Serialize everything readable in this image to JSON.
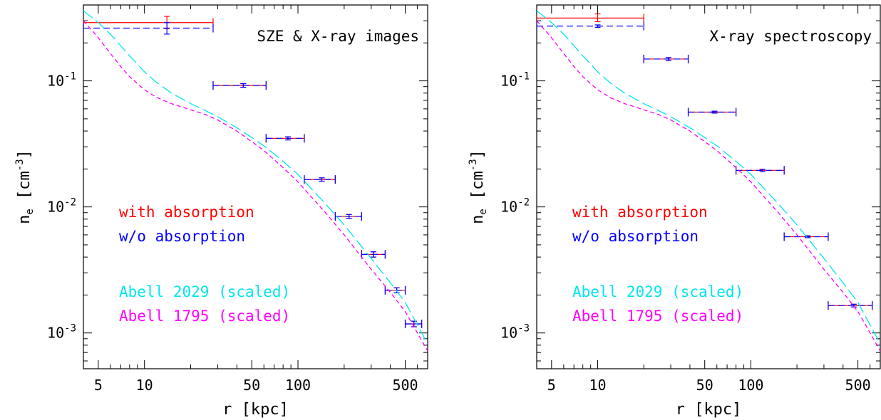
{
  "chart_data": [
    {
      "type": "scatter",
      "title": "SZE & X-ray images",
      "xlabel": "r [kpc]",
      "ylabel": "n_e [cm^-3]",
      "xscale": "log",
      "yscale": "log",
      "xlim": [
        4,
        700
      ],
      "ylim": [
        0.00052,
        0.4
      ],
      "x_ticks": [
        "5",
        "10",
        "50",
        "100",
        "500"
      ],
      "y_ticks": [
        "10^-1",
        "10^-2",
        "10^-3"
      ],
      "legend": [
        {
          "label": "with absorption",
          "color": "#ff0000"
        },
        {
          "label": "w/o absorption",
          "color": "#0000ff"
        },
        {
          "label": "Abell 2029 (scaled)",
          "color": "#00e5ee"
        },
        {
          "label": "Abell 1795 (scaled)",
          "color": "#ff00ff"
        }
      ],
      "series": [
        {
          "name": "with absorption",
          "color": "#ff0000",
          "style": "solid",
          "points": [
            {
              "x": 14,
              "xlo": 4,
              "xhi": 28,
              "y": 0.29,
              "ylo": 0.26,
              "yhi": 0.325
            },
            {
              "x": 44,
              "xlo": 28,
              "xhi": 62,
              "y": 0.092,
              "ylo": 0.089,
              "yhi": 0.095
            },
            {
              "x": 86,
              "xlo": 62,
              "xhi": 110,
              "y": 0.035,
              "ylo": 0.034,
              "yhi": 0.036
            },
            {
              "x": 143,
              "xlo": 110,
              "xhi": 175,
              "y": 0.0165,
              "ylo": 0.016,
              "yhi": 0.017
            },
            {
              "x": 215,
              "xlo": 175,
              "xhi": 260,
              "y": 0.0084,
              "ylo": 0.0081,
              "yhi": 0.0087
            },
            {
              "x": 310,
              "xlo": 260,
              "xhi": 370,
              "y": 0.0042,
              "ylo": 0.004,
              "yhi": 0.0044
            },
            {
              "x": 440,
              "xlo": 370,
              "xhi": 500,
              "y": 0.00218,
              "ylo": 0.00208,
              "yhi": 0.00228
            },
            {
              "x": 570,
              "xlo": 500,
              "xhi": 640,
              "y": 0.00118,
              "ylo": 0.00112,
              "yhi": 0.00124
            }
          ]
        },
        {
          "name": "w/o absorption",
          "color": "#0000ff",
          "style": "dashed",
          "points": [
            {
              "x": 14,
              "xlo": 4,
              "xhi": 28,
              "y": 0.262,
              "ylo": 0.235,
              "yhi": 0.29
            },
            {
              "x": 44,
              "xlo": 28,
              "xhi": 62,
              "y": 0.092,
              "ylo": 0.089,
              "yhi": 0.095
            },
            {
              "x": 86,
              "xlo": 62,
              "xhi": 110,
              "y": 0.035,
              "ylo": 0.034,
              "yhi": 0.036
            },
            {
              "x": 143,
              "xlo": 110,
              "xhi": 175,
              "y": 0.0165,
              "ylo": 0.016,
              "yhi": 0.017
            },
            {
              "x": 215,
              "xlo": 175,
              "xhi": 260,
              "y": 0.0084,
              "ylo": 0.0081,
              "yhi": 0.0087
            },
            {
              "x": 310,
              "xlo": 260,
              "xhi": 370,
              "y": 0.0042,
              "ylo": 0.004,
              "yhi": 0.0044
            },
            {
              "x": 440,
              "xlo": 370,
              "xhi": 500,
              "y": 0.00218,
              "ylo": 0.00208,
              "yhi": 0.00228
            },
            {
              "x": 570,
              "xlo": 500,
              "xhi": 640,
              "y": 0.00118,
              "ylo": 0.00112,
              "yhi": 0.00124
            }
          ]
        },
        {
          "name": "Abell 2029 (scaled)",
          "color": "#00e5ee",
          "style": "long-dash",
          "x": [
            4,
            5,
            6,
            7,
            8,
            10,
            12,
            15,
            20,
            25,
            30,
            40,
            50,
            60,
            80,
            100,
            150,
            200,
            300,
            400,
            500,
            700
          ],
          "y": [
            0.36,
            0.29,
            0.235,
            0.19,
            0.158,
            0.118,
            0.097,
            0.08,
            0.066,
            0.058,
            0.052,
            0.0425,
            0.0355,
            0.0305,
            0.023,
            0.0181,
            0.0107,
            0.0072,
            0.0039,
            0.0025,
            0.00175,
            0.00082
          ]
        },
        {
          "name": "Abell 1795 (scaled)",
          "color": "#ff00ff",
          "style": "short-dash",
          "x": [
            4,
            5,
            6,
            7,
            8,
            10,
            12,
            15,
            20,
            25,
            30,
            40,
            50,
            60,
            80,
            100,
            150,
            200,
            300,
            400,
            500,
            700
          ],
          "y": [
            0.3,
            0.22,
            0.165,
            0.13,
            0.108,
            0.085,
            0.074,
            0.066,
            0.059,
            0.054,
            0.049,
            0.04,
            0.033,
            0.028,
            0.0205,
            0.0158,
            0.0091,
            0.006,
            0.0032,
            0.0021,
            0.00148,
            0.00072
          ]
        }
      ]
    },
    {
      "type": "scatter",
      "title": "X-ray spectroscopy",
      "xlabel": "r [kpc]",
      "ylabel": "n_e [cm^-3]",
      "xscale": "log",
      "yscale": "log",
      "xlim": [
        4,
        700
      ],
      "ylim": [
        0.00052,
        0.4
      ],
      "x_ticks": [
        "5",
        "10",
        "50",
        "100",
        "500"
      ],
      "y_ticks": [
        "10^-1",
        "10^-2",
        "10^-3"
      ],
      "legend": [
        {
          "label": "with absorption",
          "color": "#ff0000"
        },
        {
          "label": "w/o absorption",
          "color": "#0000ff"
        },
        {
          "label": "Abell 2029 (scaled)",
          "color": "#00e5ee"
        },
        {
          "label": "Abell 1795 (scaled)",
          "color": "#ff00ff"
        }
      ],
      "series": [
        {
          "name": "with absorption",
          "color": "#ff0000",
          "style": "solid",
          "points": [
            {
              "x": 10,
              "xlo": 4,
              "xhi": 20,
              "y": 0.315,
              "ylo": 0.295,
              "yhi": 0.34
            },
            {
              "x": 29,
              "xlo": 20,
              "xhi": 39,
              "y": 0.149,
              "ylo": 0.145,
              "yhi": 0.153
            },
            {
              "x": 58,
              "xlo": 39,
              "xhi": 80,
              "y": 0.0565,
              "ylo": 0.0555,
              "yhi": 0.0575
            },
            {
              "x": 119,
              "xlo": 80,
              "xhi": 165,
              "y": 0.0195,
              "ylo": 0.0191,
              "yhi": 0.0199
            },
            {
              "x": 235,
              "xlo": 165,
              "xhi": 320,
              "y": 0.0058,
              "ylo": 0.0057,
              "yhi": 0.0059
            },
            {
              "x": 470,
              "xlo": 320,
              "xhi": 620,
              "y": 0.00165,
              "ylo": 0.00161,
              "yhi": 0.00169
            }
          ]
        },
        {
          "name": "w/o absorption",
          "color": "#0000ff",
          "style": "dashed",
          "points": [
            {
              "x": 10,
              "xlo": 4,
              "xhi": 20,
              "y": 0.272,
              "ylo": 0.266,
              "yhi": 0.278
            },
            {
              "x": 29,
              "xlo": 20,
              "xhi": 39,
              "y": 0.149,
              "ylo": 0.145,
              "yhi": 0.153
            },
            {
              "x": 58,
              "xlo": 39,
              "xhi": 80,
              "y": 0.0565,
              "ylo": 0.0555,
              "yhi": 0.0575
            },
            {
              "x": 119,
              "xlo": 80,
              "xhi": 165,
              "y": 0.0195,
              "ylo": 0.0191,
              "yhi": 0.0199
            },
            {
              "x": 235,
              "xlo": 165,
              "xhi": 320,
              "y": 0.0058,
              "ylo": 0.0057,
              "yhi": 0.0059
            },
            {
              "x": 470,
              "xlo": 320,
              "xhi": 620,
              "y": 0.00165,
              "ylo": 0.00161,
              "yhi": 0.00169
            }
          ]
        },
        {
          "name": "Abell 2029 (scaled)",
          "color": "#00e5ee",
          "style": "long-dash",
          "x": [
            4,
            5,
            6,
            7,
            8,
            10,
            12,
            15,
            20,
            25,
            30,
            40,
            50,
            60,
            80,
            100,
            150,
            200,
            300,
            400,
            500,
            700
          ],
          "y": [
            0.36,
            0.29,
            0.235,
            0.19,
            0.158,
            0.118,
            0.097,
            0.08,
            0.066,
            0.058,
            0.052,
            0.0425,
            0.0355,
            0.0305,
            0.023,
            0.0181,
            0.0107,
            0.0072,
            0.0039,
            0.0025,
            0.00175,
            0.00082
          ]
        },
        {
          "name": "Abell 1795 (scaled)",
          "color": "#ff00ff",
          "style": "short-dash",
          "x": [
            4,
            5,
            6,
            7,
            8,
            10,
            12,
            15,
            20,
            25,
            30,
            40,
            50,
            60,
            80,
            100,
            150,
            200,
            300,
            400,
            500,
            700
          ],
          "y": [
            0.3,
            0.22,
            0.165,
            0.13,
            0.108,
            0.085,
            0.074,
            0.066,
            0.059,
            0.054,
            0.049,
            0.04,
            0.033,
            0.028,
            0.0205,
            0.0158,
            0.0091,
            0.006,
            0.0032,
            0.0021,
            0.00148,
            0.00072
          ]
        }
      ]
    }
  ]
}
